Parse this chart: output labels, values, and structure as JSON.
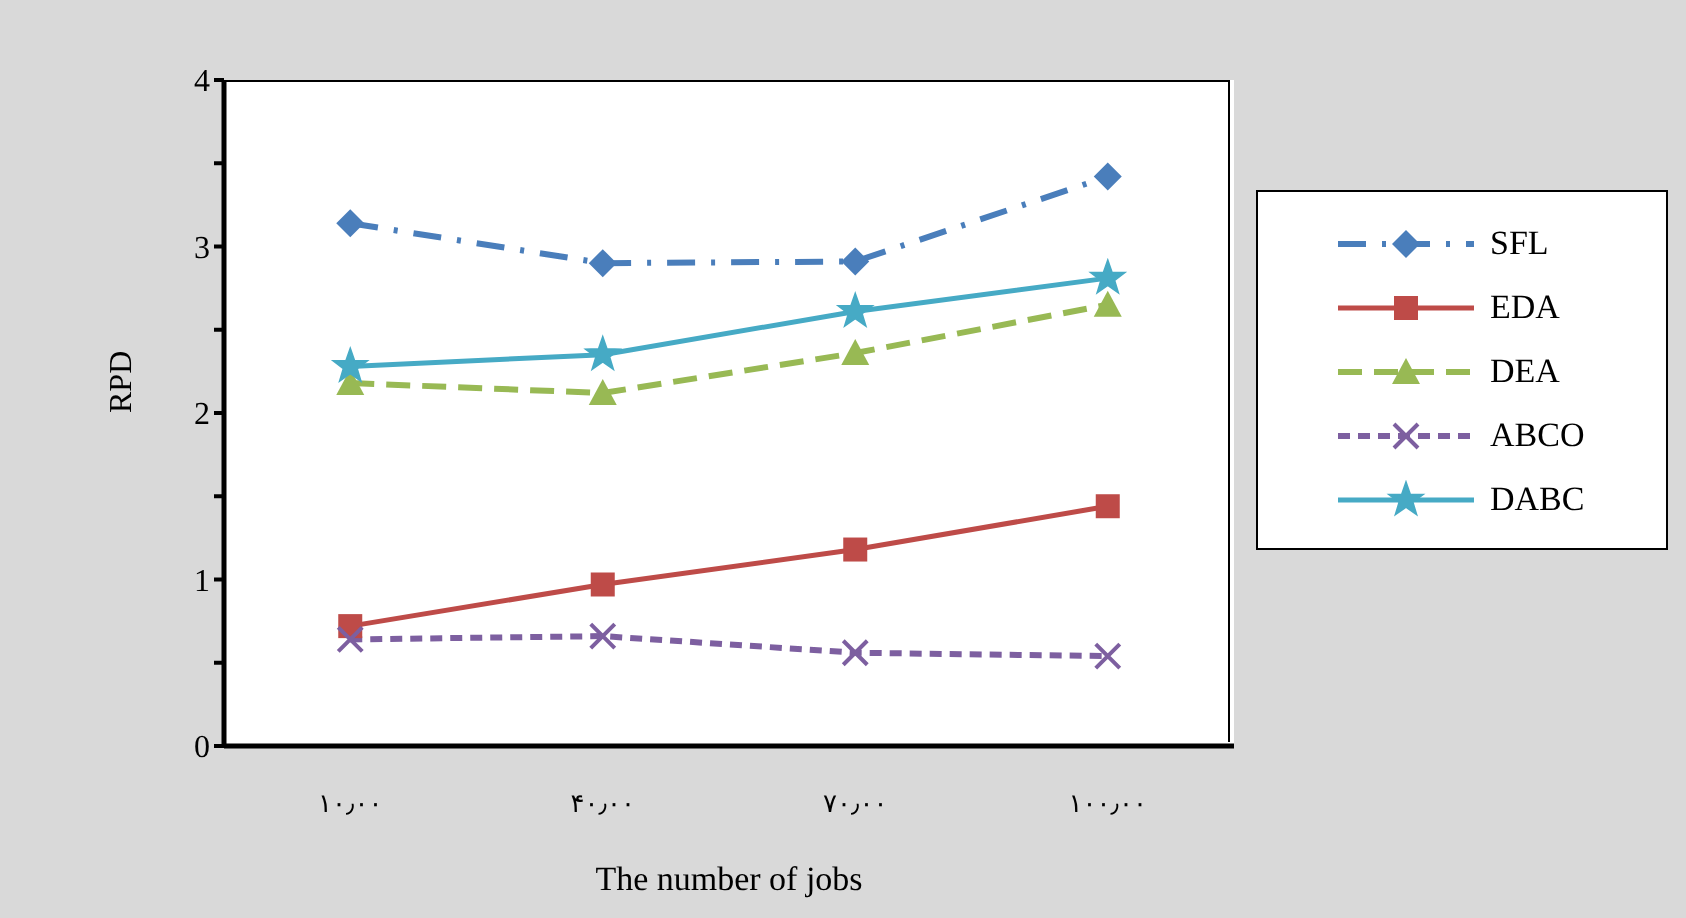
{
  "chart_data": {
    "type": "line",
    "xlabel": "The number of jobs",
    "ylabel": "RPD",
    "categories": [
      "۱۰٫۰۰",
      "۴۰٫۰۰",
      "۷۰٫۰۰",
      "۱۰۰٫۰۰"
    ],
    "ylim": [
      0,
      4
    ],
    "yticks": [
      0,
      {
        "value": 0.5,
        "label": null
      },
      1,
      {
        "value": 1.5,
        "label": null
      },
      2,
      {
        "value": 2.5,
        "label": null
      },
      3,
      {
        "value": 3.5,
        "label": null
      },
      4
    ],
    "grid": false,
    "legend": "right",
    "series": [
      {
        "name": "SFL",
        "color": "#4a7ebb",
        "values": [
          3.14,
          2.9,
          2.91,
          3.42
        ],
        "marker": "diamond",
        "line_style": "dashdot"
      },
      {
        "name": "EDA",
        "color": "#be4b48",
        "values": [
          0.72,
          0.97,
          1.18,
          1.44
        ],
        "marker": "square",
        "line_style": "solid"
      },
      {
        "name": "DEA",
        "color": "#98b954",
        "values": [
          2.18,
          2.12,
          2.36,
          2.65
        ],
        "marker": "triangle",
        "line_style": "dashed"
      },
      {
        "name": "ABCO",
        "color": "#7d5fa0",
        "values": [
          0.64,
          0.66,
          0.56,
          0.54
        ],
        "marker": "cross",
        "line_style": "dotted"
      },
      {
        "name": "DABC",
        "color": "#46aac5",
        "values": [
          2.28,
          2.35,
          2.61,
          2.81
        ],
        "marker": "star",
        "line_style": "solid"
      }
    ]
  }
}
